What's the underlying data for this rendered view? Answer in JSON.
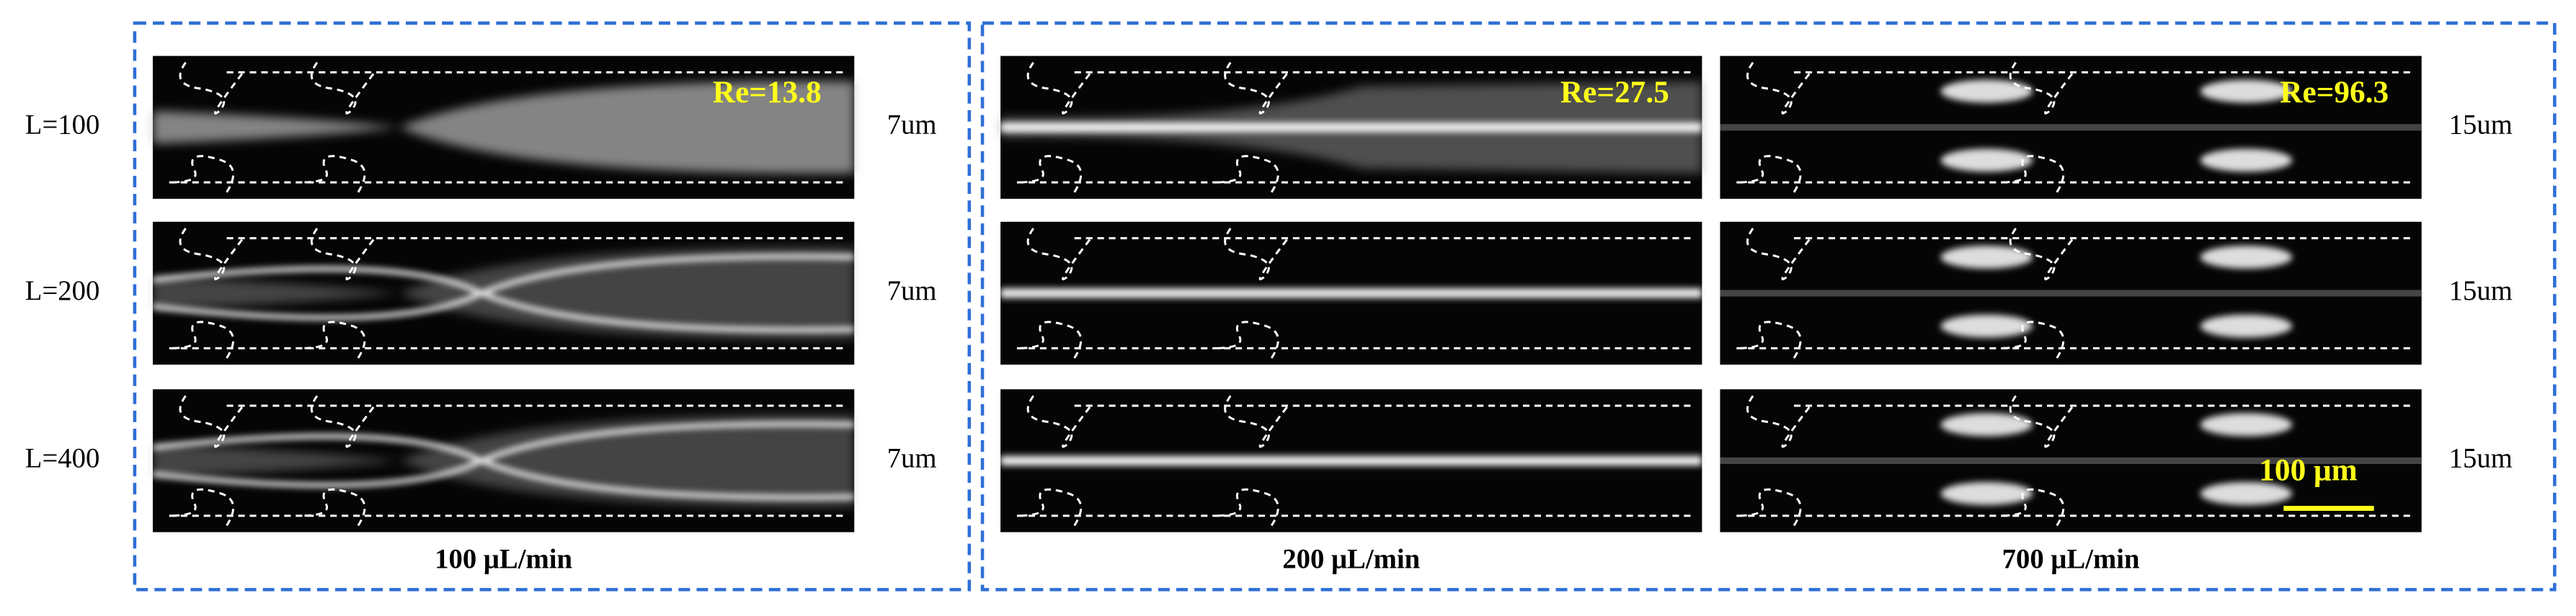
{
  "row_labels": [
    "L=100",
    "L=200",
    "L=400"
  ],
  "columns": [
    {
      "flow_label": "100 μL/min",
      "reynolds_label": "Re=13.8",
      "gap_labels": [
        "7um",
        "7um",
        "7um"
      ]
    },
    {
      "flow_label": "200 μL/min",
      "reynolds_label": "Re=27.5"
    },
    {
      "flow_label": "700 μL/min",
      "reynolds_label": "Re=96.3",
      "gap_labels": [
        "15um",
        "15um",
        "15um"
      ]
    }
  ],
  "scale_bar_label": "100 μm"
}
